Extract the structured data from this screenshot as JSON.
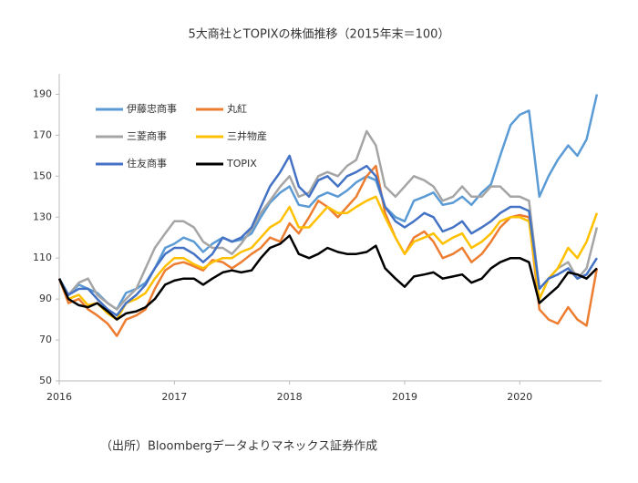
{
  "chart_data": {
    "type": "line",
    "title": "5大商社とTOPIXの株価推移（2015年末＝100）",
    "note": "（出所）Bloombergデータよりマネックス証券作成",
    "x": [
      2016.0,
      2016.08,
      2016.17,
      2016.25,
      2016.33,
      2016.42,
      2016.5,
      2016.58,
      2016.67,
      2016.75,
      2016.83,
      2016.92,
      2017.0,
      2017.08,
      2017.17,
      2017.25,
      2017.33,
      2017.42,
      2017.5,
      2017.58,
      2017.67,
      2017.75,
      2017.83,
      2017.92,
      2018.0,
      2018.08,
      2018.17,
      2018.25,
      2018.33,
      2018.42,
      2018.5,
      2018.58,
      2018.67,
      2018.75,
      2018.83,
      2018.92,
      2019.0,
      2019.08,
      2019.17,
      2019.25,
      2019.33,
      2019.42,
      2019.5,
      2019.58,
      2019.67,
      2019.75,
      2019.83,
      2019.92,
      2020.0,
      2020.08,
      2020.17,
      2020.25,
      2020.33,
      2020.42,
      2020.5,
      2020.58,
      2020.67
    ],
    "series": [
      {
        "name": "伊藤忠商事",
        "color": "#5b9bd5",
        "values": [
          100,
          92,
          97,
          95,
          93,
          88,
          85,
          93,
          95,
          98,
          105,
          115,
          117,
          120,
          118,
          113,
          117,
          120,
          118,
          119,
          122,
          130,
          137,
          142,
          145,
          136,
          135,
          140,
          142,
          140,
          143,
          147,
          150,
          148,
          135,
          130,
          128,
          138,
          140,
          142,
          136,
          137,
          140,
          136,
          142,
          146,
          160,
          175,
          180,
          182,
          140,
          150,
          158,
          165,
          160,
          168,
          190
        ]
      },
      {
        "name": "丸紅",
        "color": "#ed7d31",
        "values": [
          100,
          88,
          90,
          85,
          82,
          78,
          72,
          80,
          82,
          85,
          95,
          104,
          107,
          108,
          106,
          104,
          109,
          108,
          105,
          108,
          112,
          115,
          120,
          118,
          127,
          122,
          130,
          138,
          135,
          130,
          135,
          140,
          150,
          155,
          132,
          120,
          112,
          120,
          123,
          118,
          110,
          112,
          115,
          108,
          112,
          118,
          125,
          130,
          131,
          130,
          85,
          80,
          78,
          86,
          80,
          77,
          105
        ]
      },
      {
        "name": "三菱商事",
        "color": "#a5a5a5",
        "values": [
          100,
          92,
          98,
          100,
          92,
          88,
          85,
          90,
          95,
          105,
          115,
          122,
          128,
          128,
          125,
          118,
          115,
          115,
          112,
          117,
          124,
          132,
          138,
          145,
          150,
          140,
          142,
          150,
          152,
          150,
          155,
          158,
          172,
          165,
          145,
          140,
          145,
          150,
          148,
          145,
          138,
          140,
          145,
          140,
          140,
          145,
          145,
          140,
          140,
          138,
          95,
          100,
          105,
          108,
          100,
          105,
          125
        ]
      },
      {
        "name": "三井物産",
        "color": "#ffc000",
        "values": [
          100,
          90,
          92,
          87,
          88,
          83,
          80,
          88,
          90,
          93,
          100,
          106,
          110,
          110,
          107,
          105,
          108,
          110,
          110,
          113,
          115,
          120,
          125,
          128,
          135,
          125,
          125,
          130,
          135,
          132,
          132,
          135,
          138,
          140,
          130,
          120,
          112,
          118,
          120,
          122,
          117,
          120,
          122,
          115,
          118,
          122,
          128,
          130,
          130,
          128,
          90,
          100,
          105,
          115,
          110,
          118,
          132
        ]
      },
      {
        "name": "住友商事",
        "color": "#4472c4",
        "values": [
          100,
          92,
          95,
          95,
          90,
          85,
          82,
          88,
          92,
          97,
          105,
          112,
          115,
          115,
          112,
          108,
          112,
          120,
          118,
          120,
          125,
          135,
          145,
          152,
          160,
          145,
          140,
          148,
          150,
          145,
          150,
          152,
          155,
          150,
          135,
          128,
          125,
          128,
          132,
          130,
          123,
          125,
          128,
          122,
          125,
          128,
          132,
          135,
          135,
          133,
          95,
          100,
          102,
          105,
          100,
          102,
          110
        ]
      },
      {
        "name": "TOPIX",
        "color": "#000000",
        "values": [
          100,
          90,
          87,
          86,
          88,
          84,
          80,
          83,
          84,
          86,
          90,
          97,
          99,
          100,
          100,
          97,
          100,
          103,
          104,
          103,
          104,
          110,
          115,
          117,
          121,
          112,
          110,
          112,
          115,
          113,
          112,
          112,
          113,
          116,
          105,
          100,
          96,
          101,
          102,
          103,
          100,
          101,
          102,
          98,
          100,
          105,
          108,
          110,
          110,
          108,
          88,
          92,
          96,
          103,
          102,
          100,
          105
        ]
      }
    ],
    "xlim": [
      2016,
      2020.71
    ],
    "xticks": [
      2016,
      2017,
      2018,
      2019,
      2020
    ],
    "ylim": [
      50,
      200
    ],
    "yticks": [
      50,
      70,
      90,
      110,
      130,
      150,
      170,
      190
    ]
  }
}
